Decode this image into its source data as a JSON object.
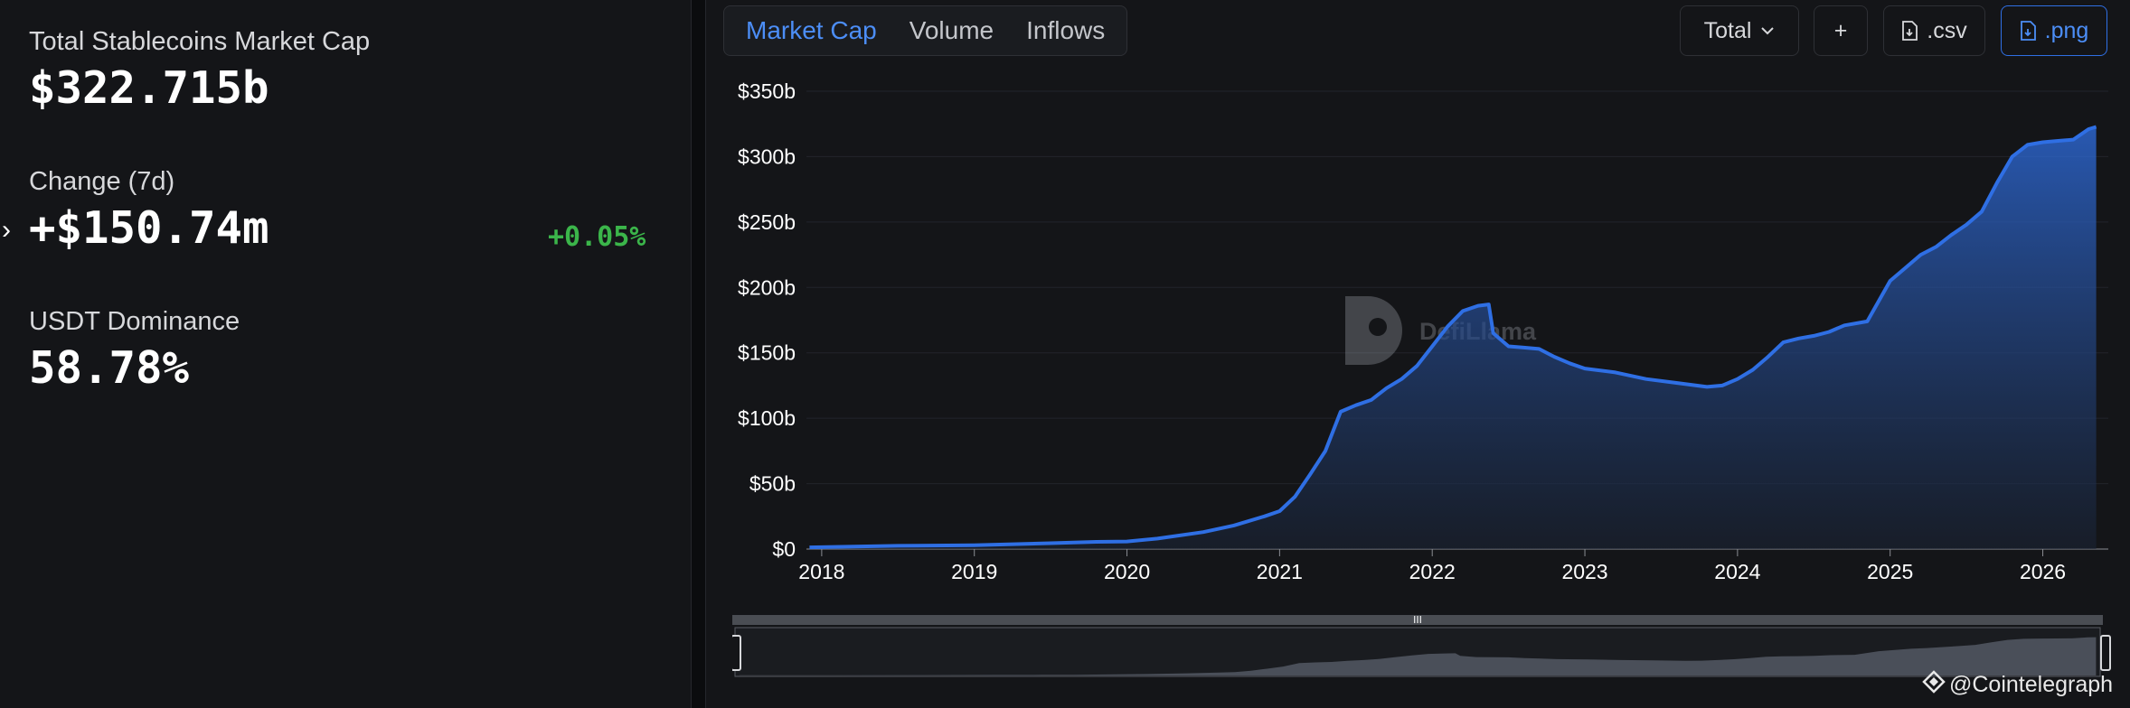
{
  "stats": {
    "market_cap_label": "Total Stablecoins Market Cap",
    "market_cap_value": "$322.715b",
    "change_label": "Change (7d)",
    "change_value": "+$150.74m",
    "change_pct": "+0.05%",
    "dominance_label": "USDT Dominance",
    "dominance_value": "58.78%"
  },
  "tabs": [
    {
      "label": "Market Cap",
      "active": true
    },
    {
      "label": "Volume",
      "active": false
    },
    {
      "label": "Inflows",
      "active": false
    }
  ],
  "toolbar": {
    "total_label": "Total",
    "add_label": "+",
    "csv_label": ".csv",
    "png_label": ".png"
  },
  "watermark": "DefiLlama",
  "credit": "@Cointelegraph",
  "colors": {
    "accent": "#2f6fe4",
    "positive": "#3bb54a",
    "background": "#141518"
  },
  "chart_data": {
    "type": "area",
    "x_unit": "year",
    "y_unit": "USD billions",
    "yticks": [
      "$0",
      "$50b",
      "$100b",
      "$150b",
      "$200b",
      "$250b",
      "$300b",
      "$350b"
    ],
    "ytick_values": [
      0,
      50,
      100,
      150,
      200,
      250,
      300,
      350
    ],
    "xticks": [
      "2018",
      "2019",
      "2020",
      "2021",
      "2022",
      "2023",
      "2024",
      "2025",
      "2026"
    ],
    "xtick_values": [
      2018,
      2019,
      2020,
      2021,
      2022,
      2023,
      2024,
      2025,
      2026
    ],
    "xlim": [
      2017.9,
      2026.37
    ],
    "ylim": [
      0,
      350
    ],
    "grid": true,
    "points": [
      [
        2017.92,
        1.3
      ],
      [
        2018.5,
        2.5
      ],
      [
        2019.0,
        3.0
      ],
      [
        2019.5,
        4.5
      ],
      [
        2019.8,
        5.5
      ],
      [
        2020.0,
        5.8
      ],
      [
        2020.2,
        8
      ],
      [
        2020.5,
        13
      ],
      [
        2020.7,
        18
      ],
      [
        2020.9,
        25
      ],
      [
        2021.0,
        29
      ],
      [
        2021.1,
        40
      ],
      [
        2021.2,
        57
      ],
      [
        2021.3,
        75
      ],
      [
        2021.4,
        105
      ],
      [
        2021.5,
        110
      ],
      [
        2021.6,
        114
      ],
      [
        2021.7,
        123
      ],
      [
        2021.8,
        130
      ],
      [
        2021.9,
        140
      ],
      [
        2022.0,
        155
      ],
      [
        2022.1,
        170
      ],
      [
        2022.2,
        182
      ],
      [
        2022.3,
        186
      ],
      [
        2022.37,
        187
      ],
      [
        2022.4,
        165
      ],
      [
        2022.5,
        155
      ],
      [
        2022.6,
        154
      ],
      [
        2022.7,
        153
      ],
      [
        2022.8,
        147
      ],
      [
        2022.9,
        142
      ],
      [
        2023.0,
        138
      ],
      [
        2023.2,
        135
      ],
      [
        2023.4,
        130
      ],
      [
        2023.6,
        127
      ],
      [
        2023.8,
        124
      ],
      [
        2023.9,
        125
      ],
      [
        2024.0,
        130
      ],
      [
        2024.1,
        137
      ],
      [
        2024.2,
        147
      ],
      [
        2024.3,
        158
      ],
      [
        2024.4,
        161
      ],
      [
        2024.5,
        163
      ],
      [
        2024.6,
        166
      ],
      [
        2024.7,
        171
      ],
      [
        2024.85,
        174
      ],
      [
        2025.0,
        205
      ],
      [
        2025.1,
        215
      ],
      [
        2025.2,
        225
      ],
      [
        2025.3,
        231
      ],
      [
        2025.4,
        240
      ],
      [
        2025.5,
        248
      ],
      [
        2025.6,
        258
      ],
      [
        2025.7,
        280
      ],
      [
        2025.8,
        300
      ],
      [
        2025.9,
        309
      ],
      [
        2026.0,
        311
      ],
      [
        2026.1,
        312
      ],
      [
        2026.2,
        313
      ],
      [
        2026.3,
        321
      ],
      [
        2026.35,
        322.7
      ]
    ]
  }
}
